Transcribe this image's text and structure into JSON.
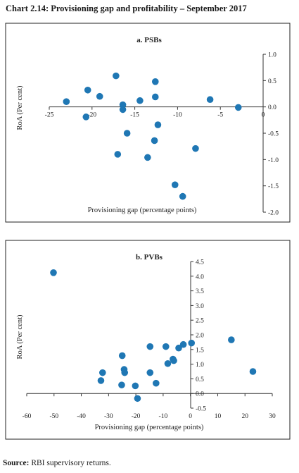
{
  "title": "Chart 2.14: Provisioning gap and profitability – September 2017",
  "source_label": "Source:",
  "source_text": " RBI supervisory returns.",
  "colors": {
    "marker": "#1f77b4",
    "axis": "#333333",
    "frame": "#222222"
  },
  "chart_data": [
    {
      "type": "scatter",
      "title": "a. PSBs",
      "xlabel": "Provisioning gap (percentage points)",
      "ylabel": "RoA (Per cent)",
      "xlim": [
        -25,
        0
      ],
      "ylim": [
        -2.0,
        1.0
      ],
      "xticks": [
        -25,
        -20,
        -15,
        -10,
        -5,
        0
      ],
      "yticks": [
        1.0,
        0.5,
        0.0,
        -0.5,
        -1.0,
        -1.5,
        -2.0
      ],
      "x_ticklabels": [
        "-25",
        "-20",
        "-15",
        "-10",
        "-5",
        "0"
      ],
      "y_ticklabels": [
        "1.0",
        "0.5",
        "0.0",
        "-0.5",
        "-1.0",
        "-1.5",
        "-2.0"
      ],
      "grid": false,
      "points": [
        {
          "x": -23.0,
          "y": 0.1
        },
        {
          "x": -20.5,
          "y": 0.32
        },
        {
          "x": -20.7,
          "y": -0.19
        },
        {
          "x": -19.1,
          "y": 0.2
        },
        {
          "x": -17.2,
          "y": 0.59
        },
        {
          "x": -16.4,
          "y": 0.04
        },
        {
          "x": -16.4,
          "y": -0.05
        },
        {
          "x": -15.9,
          "y": -0.5
        },
        {
          "x": -17.0,
          "y": -0.9
        },
        {
          "x": -14.4,
          "y": 0.12
        },
        {
          "x": -12.6,
          "y": 0.48
        },
        {
          "x": -12.6,
          "y": 0.19
        },
        {
          "x": -12.3,
          "y": -0.34
        },
        {
          "x": -12.7,
          "y": -0.64
        },
        {
          "x": -13.5,
          "y": -0.96
        },
        {
          "x": -7.9,
          "y": -0.79
        },
        {
          "x": -10.3,
          "y": -1.48
        },
        {
          "x": -9.4,
          "y": -1.7
        },
        {
          "x": -6.2,
          "y": 0.14
        },
        {
          "x": -2.9,
          "y": -0.01
        }
      ]
    },
    {
      "type": "scatter",
      "title": "b. PVBs",
      "xlabel": "Provisioning gap (percentage points)",
      "ylabel": "RoA (Per cent)",
      "xlim": [
        -60,
        30
      ],
      "ylim": [
        -0.5,
        4.5
      ],
      "xticks": [
        -60,
        -50,
        -40,
        -30,
        -20,
        -10,
        0,
        10,
        20,
        30
      ],
      "yticks": [
        4.5,
        4.0,
        3.5,
        3.0,
        2.5,
        2.0,
        1.5,
        1.0,
        0.5,
        0.0,
        -0.5
      ],
      "x_ticklabels": [
        "-60",
        "-50",
        "-40",
        "-30",
        "-20",
        "-10",
        "0",
        "10",
        "20",
        "30"
      ],
      "y_ticklabels": [
        "4.5",
        "4.0",
        "3.5",
        "3.0",
        "2.5",
        "2.0",
        "1.5",
        "1.0",
        "0.5",
        "0.0",
        "-0.5"
      ],
      "grid": false,
      "points": [
        {
          "x": -50.2,
          "y": 4.12
        },
        {
          "x": -32.2,
          "y": 0.71
        },
        {
          "x": -32.8,
          "y": 0.44
        },
        {
          "x": -25.0,
          "y": 1.29
        },
        {
          "x": -24.3,
          "y": 0.82
        },
        {
          "x": -24.1,
          "y": 0.71
        },
        {
          "x": -25.2,
          "y": 0.29
        },
        {
          "x": -20.2,
          "y": 0.26
        },
        {
          "x": -19.4,
          "y": -0.17
        },
        {
          "x": -14.8,
          "y": 1.6
        },
        {
          "x": -14.8,
          "y": 0.71
        },
        {
          "x": -12.6,
          "y": 0.35
        },
        {
          "x": -9.0,
          "y": 1.6
        },
        {
          "x": -8.3,
          "y": 1.02
        },
        {
          "x": -6.4,
          "y": 1.17
        },
        {
          "x": -6.1,
          "y": 1.12
        },
        {
          "x": -4.3,
          "y": 1.55
        },
        {
          "x": -2.6,
          "y": 1.67
        },
        {
          "x": 0.4,
          "y": 1.72
        },
        {
          "x": 15.0,
          "y": 1.83
        },
        {
          "x": 22.9,
          "y": 0.75
        }
      ]
    }
  ]
}
